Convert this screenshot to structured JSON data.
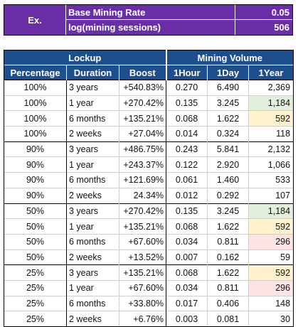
{
  "info": {
    "ex_label": "Ex.",
    "base_rate_label": "Base Mining Rate",
    "base_rate_value": "0.05",
    "log_label": "log(mining sessions)",
    "log_value": "506",
    "bg_color": "#6a2fa6"
  },
  "table": {
    "group_lockup": "Lockup",
    "group_mining": "Mining Volume",
    "columns": [
      "Percentage",
      "Duration",
      "Boost",
      "1Hour",
      "1Day",
      "1Year"
    ],
    "header_color": "#1f4e8c",
    "highlight_colors": {
      "green": "#e2efda",
      "yellow": "#fff2cc",
      "pink": "#fce4e4"
    },
    "rows": [
      {
        "pct": "100%",
        "dur": "3 years",
        "boost": "+540.83%",
        "h1": "0.270",
        "d1": "6.490",
        "y1": "2,369",
        "hl": ""
      },
      {
        "pct": "100%",
        "dur": "1 year",
        "boost": "+270.42%",
        "h1": "0.135",
        "d1": "3.245",
        "y1": "1,184",
        "hl": "green"
      },
      {
        "pct": "100%",
        "dur": "6 months",
        "boost": "+135.21%",
        "h1": "0.068",
        "d1": "1.622",
        "y1": "592",
        "hl": "yellow"
      },
      {
        "pct": "100%",
        "dur": "2 weeks",
        "boost": "+27.04%",
        "h1": "0.014",
        "d1": "0.324",
        "y1": "118",
        "hl": ""
      },
      {
        "pct": "90%",
        "dur": "3 years",
        "boost": "+486.75%",
        "h1": "0.243",
        "d1": "5.841",
        "y1": "2,132",
        "hl": ""
      },
      {
        "pct": "90%",
        "dur": "1 year",
        "boost": "+243.37%",
        "h1": "0.122",
        "d1": "2.920",
        "y1": "1,066",
        "hl": ""
      },
      {
        "pct": "90%",
        "dur": "6 months",
        "boost": "+121.69%",
        "h1": "0.061",
        "d1": "1.460",
        "y1": "533",
        "hl": ""
      },
      {
        "pct": "90%",
        "dur": "2 weeks",
        "boost": "24.34%",
        "h1": "0.012",
        "d1": "0.292",
        "y1": "107",
        "hl": ""
      },
      {
        "pct": "50%",
        "dur": "3 years",
        "boost": "+270.42%",
        "h1": "0.135",
        "d1": "3.245",
        "y1": "1,184",
        "hl": "green"
      },
      {
        "pct": "50%",
        "dur": "1 year",
        "boost": "+135.21%",
        "h1": "0.068",
        "d1": "1.622",
        "y1": "592",
        "hl": "yellow"
      },
      {
        "pct": "50%",
        "dur": "6 months",
        "boost": "+67.60%",
        "h1": "0.034",
        "d1": "0.811",
        "y1": "296",
        "hl": "pink"
      },
      {
        "pct": "50%",
        "dur": "2 weeks",
        "boost": "+13.52%",
        "h1": "0.007",
        "d1": "0.162",
        "y1": "59",
        "hl": ""
      },
      {
        "pct": "25%",
        "dur": "3 years",
        "boost": "+135.21%",
        "h1": "0.068",
        "d1": "1.622",
        "y1": "592",
        "hl": "yellow"
      },
      {
        "pct": "25%",
        "dur": "1 year",
        "boost": "+67.60%",
        "h1": "0.034",
        "d1": "0.811",
        "y1": "296",
        "hl": "pink"
      },
      {
        "pct": "25%",
        "dur": "6 months",
        "boost": "+33.80%",
        "h1": "0.017",
        "d1": "0.406",
        "y1": "148",
        "hl": ""
      },
      {
        "pct": "25%",
        "dur": "2 weeks",
        "boost": "+6.76%",
        "h1": "0.003",
        "d1": "0.081",
        "y1": "30",
        "hl": ""
      }
    ]
  }
}
